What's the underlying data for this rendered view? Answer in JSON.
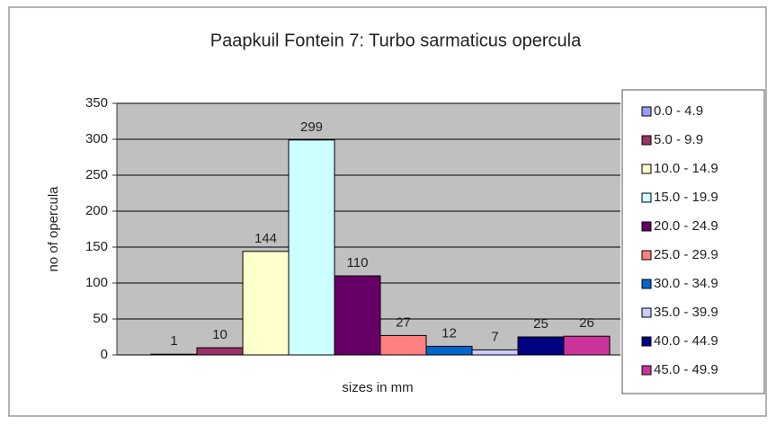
{
  "chart_data": {
    "type": "bar",
    "title": "Paapkuil Fontein 7: Turbo sarmaticus opercula",
    "x_label": "sizes in mm",
    "y_label": "no of opercula",
    "categories": [
      "0.0 - 4.9",
      "5.0 - 9.9",
      "10.0 - 14.9",
      "15.0 - 19.9",
      "20.0 - 24.9",
      "25.0 - 29.9",
      "30.0 - 34.9",
      "35.0 - 39.9",
      "40.0 - 44.9",
      "45.0 - 49.9"
    ],
    "values": [
      1,
      10,
      144,
      299,
      110,
      27,
      12,
      7,
      25,
      26
    ],
    "colors": [
      "#9999ff",
      "#993366",
      "#ffffcc",
      "#ccffff",
      "#660066",
      "#ff8080",
      "#0066cc",
      "#ccccff",
      "#000080",
      "#cc3399"
    ],
    "ylim": [
      0,
      350
    ],
    "yticks": [
      0,
      50,
      100,
      150,
      200,
      250,
      300,
      350
    ],
    "grid": true,
    "legend": "right"
  }
}
